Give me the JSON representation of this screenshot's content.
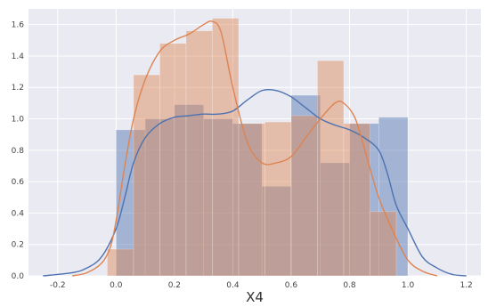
{
  "chart_data": {
    "type": "histogram",
    "title": "",
    "xlabel": "X4",
    "ylabel": "",
    "xlim": [
      -0.3,
      1.25
    ],
    "ylim": [
      0,
      1.7
    ],
    "grid": true,
    "xticks": [
      -0.2,
      0.0,
      0.2,
      0.4,
      0.6,
      0.8,
      1.0,
      1.2
    ],
    "xtick_labels": [
      "-0.2",
      "0.0",
      "0.2",
      "0.4",
      "0.6",
      "0.8",
      "1.0",
      "1.2"
    ],
    "yticks": [
      0.0,
      0.2,
      0.4,
      0.6,
      0.8,
      1.0,
      1.2,
      1.4,
      1.6
    ],
    "ytick_labels": [
      "0.0",
      "0.2",
      "0.4",
      "0.6",
      "0.8",
      "1.0",
      "1.2",
      "1.4",
      "1.6"
    ],
    "series": [
      {
        "color": "#4c72b0",
        "bin_edges": [
          0.0,
          0.1,
          0.2,
          0.3,
          0.4,
          0.5,
          0.6,
          0.7,
          0.8,
          0.9,
          1.0
        ],
        "heights": [
          0.93,
          1.0,
          1.09,
          1.0,
          0.97,
          0.57,
          1.15,
          0.72,
          0.97,
          1.01
        ],
        "kde": {
          "x": [
            -0.25,
            -0.15,
            -0.1,
            -0.05,
            0.0,
            0.03,
            0.06,
            0.1,
            0.15,
            0.2,
            0.25,
            0.3,
            0.35,
            0.4,
            0.45,
            0.5,
            0.55,
            0.6,
            0.65,
            0.7,
            0.75,
            0.8,
            0.85,
            0.9,
            0.93,
            0.96,
            1.0,
            1.05,
            1.1,
            1.15,
            1.2
          ],
          "y": [
            0.0,
            0.02,
            0.05,
            0.12,
            0.3,
            0.5,
            0.72,
            0.88,
            0.97,
            1.01,
            1.02,
            1.03,
            1.03,
            1.05,
            1.12,
            1.18,
            1.18,
            1.14,
            1.07,
            1.0,
            0.96,
            0.93,
            0.88,
            0.8,
            0.65,
            0.45,
            0.3,
            0.12,
            0.05,
            0.01,
            0.0
          ]
        }
      },
      {
        "color": "#dd8452",
        "bin_edges": [
          -0.03,
          0.06,
          0.15,
          0.24,
          0.33,
          0.42,
          0.51,
          0.6,
          0.69,
          0.78,
          0.87,
          0.96
        ],
        "heights": [
          0.17,
          1.28,
          1.48,
          1.56,
          1.64,
          0.97,
          0.98,
          1.02,
          1.37,
          0.97,
          0.41
        ],
        "kde": {
          "x": [
            -0.15,
            -0.1,
            -0.05,
            -0.02,
            0.0,
            0.03,
            0.06,
            0.1,
            0.15,
            0.2,
            0.25,
            0.3,
            0.33,
            0.36,
            0.4,
            0.45,
            0.5,
            0.55,
            0.6,
            0.65,
            0.7,
            0.75,
            0.78,
            0.82,
            0.86,
            0.9,
            0.95,
            1.0,
            1.05,
            1.1
          ],
          "y": [
            0.0,
            0.02,
            0.08,
            0.18,
            0.35,
            0.7,
            1.0,
            1.25,
            1.43,
            1.5,
            1.54,
            1.6,
            1.62,
            1.55,
            1.2,
            0.85,
            0.72,
            0.72,
            0.76,
            0.88,
            1.0,
            1.1,
            1.1,
            1.0,
            0.75,
            0.5,
            0.28,
            0.1,
            0.03,
            0.0
          ]
        }
      }
    ]
  }
}
